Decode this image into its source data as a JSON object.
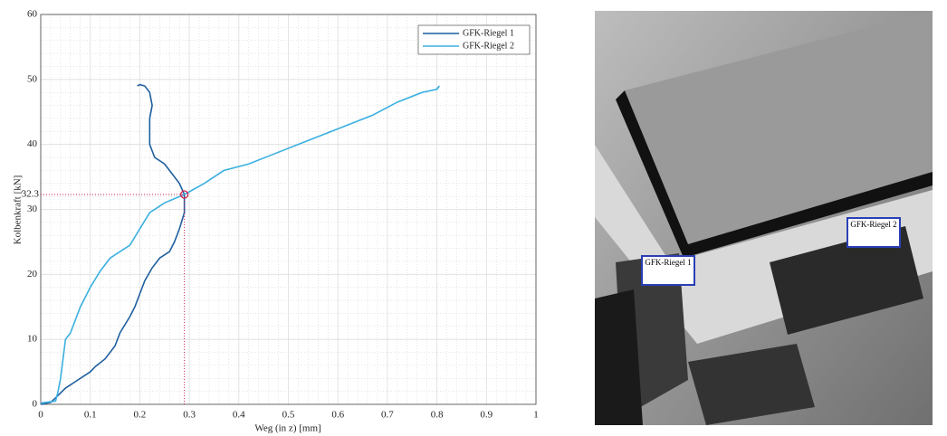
{
  "chart_data": {
    "type": "line",
    "xlabel": "Weg (in z) [mm]",
    "ylabel": "Kolbenkraft [kN]",
    "xlim": [
      0,
      1
    ],
    "ylim": [
      0,
      60
    ],
    "xticks": [
      0,
      0.1,
      0.2,
      0.3,
      0.4,
      0.5,
      0.6,
      0.7,
      0.8,
      0.9,
      1
    ],
    "yticks": [
      0,
      10,
      20,
      30,
      40,
      50,
      60
    ],
    "grid": true,
    "minor_grid": true,
    "legend": "upper right",
    "series": [
      {
        "name": "GFK-Riegel 1",
        "color": "#1f5f9f",
        "x": [
          0,
          0.02,
          0.03,
          0.05,
          0.07,
          0.1,
          0.11,
          0.13,
          0.15,
          0.16,
          0.18,
          0.19,
          0.2,
          0.21,
          0.225,
          0.24,
          0.26,
          0.27,
          0.28,
          0.29,
          0.29,
          0.28,
          0.26,
          0.25,
          0.23,
          0.22,
          0.22,
          0.22,
          0.225,
          0.22,
          0.21,
          0.2,
          0.195
        ],
        "y": [
          0,
          0.3,
          1,
          2.5,
          3.5,
          5,
          5.8,
          7,
          9,
          11,
          13.5,
          15,
          17,
          19,
          21,
          22.5,
          23.5,
          25,
          27,
          29.5,
          32.3,
          34,
          36,
          37,
          38,
          40,
          42,
          44,
          46,
          48,
          49,
          49.2,
          49
        ]
      },
      {
        "name": "GFK-Riegel 2",
        "color": "#3ab0e0",
        "x": [
          0,
          0.03,
          0.035,
          0.04,
          0.045,
          0.05,
          0.06,
          0.07,
          0.08,
          0.09,
          0.1,
          0.12,
          0.14,
          0.16,
          0.18,
          0.2,
          0.22,
          0.25,
          0.29,
          0.33,
          0.37,
          0.42,
          0.47,
          0.52,
          0.57,
          0.62,
          0.67,
          0.72,
          0.77,
          0.8,
          0.805,
          0.8
        ],
        "y": [
          0.2,
          0.5,
          2,
          4,
          7,
          10,
          11,
          13,
          15,
          16.5,
          18,
          20.5,
          22.5,
          23.5,
          24.5,
          27,
          29.5,
          31,
          32.3,
          34,
          36,
          37,
          38.5,
          40,
          41.5,
          43,
          44.5,
          46.5,
          48,
          48.5,
          49,
          48.6
        ]
      }
    ],
    "annotation": {
      "x": 0.29,
      "y": 32.3,
      "color": "#d0204a"
    }
  },
  "image": {
    "labels": [
      "GFK-Riegel 1",
      "GFK-Riegel 2"
    ]
  }
}
